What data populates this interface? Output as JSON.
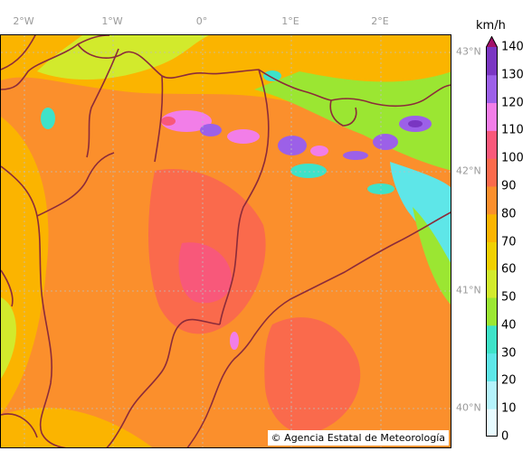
{
  "map": {
    "lon_labels": [
      "2°W",
      "1°W",
      "0°",
      "1°E",
      "2°E"
    ],
    "lat_labels": [
      "43°N",
      "42°N",
      "41°N",
      "40°N"
    ],
    "copyright": "© Agencia Estatal de Meteorología"
  },
  "colorbar": {
    "unit": "km/h",
    "ticks": [
      "0",
      "10",
      "20",
      "30",
      "40",
      "50",
      "60",
      "70",
      "80",
      "90",
      "100",
      "110",
      "120",
      "130",
      "140"
    ],
    "colors": [
      "#e8fbff",
      "#b4f2fb",
      "#5ee6e8",
      "#3ee2c8",
      "#9be632",
      "#d2ea2c",
      "#f0d000",
      "#fbb400",
      "#fb8f2c",
      "#fa6a4c",
      "#f8587a",
      "#f27ee8",
      "#9c60e8",
      "#7a36c2",
      "#a3126a"
    ]
  }
}
